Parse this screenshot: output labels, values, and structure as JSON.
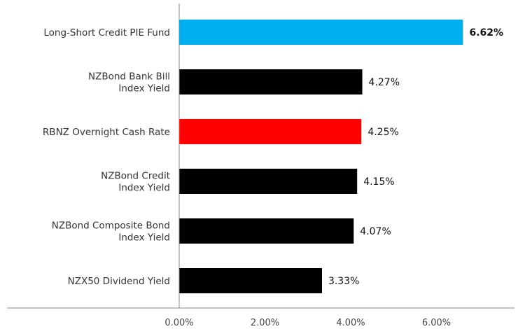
{
  "chart_data": {
    "type": "bar",
    "orientation": "horizontal",
    "categories": [
      "Long-Short Credit PIE Fund",
      "NZBond Bank Bill\nIndex Yield",
      "RBNZ Overnight Cash Rate",
      "NZBond Credit\nIndex Yield",
      "NZBond Composite Bond\nIndex Yield",
      "NZX50 Dividend Yield"
    ],
    "values": [
      6.62,
      4.27,
      4.25,
      4.15,
      4.07,
      3.33
    ],
    "value_labels": [
      "6.62%",
      "4.27%",
      "4.25%",
      "4.15%",
      "4.07%",
      "3.33%"
    ],
    "bold_label_index": 0,
    "colors": [
      "#00B0F0",
      "#000000",
      "#FF0000",
      "#000000",
      "#000000",
      "#000000"
    ],
    "x_ticks": [
      0,
      2,
      4,
      6
    ],
    "x_tick_labels": [
      "0.00%",
      "2.00%",
      "4.00%",
      "6.00%"
    ],
    "xlim": [
      0,
      8
    ],
    "grid": false,
    "legend": "none"
  }
}
